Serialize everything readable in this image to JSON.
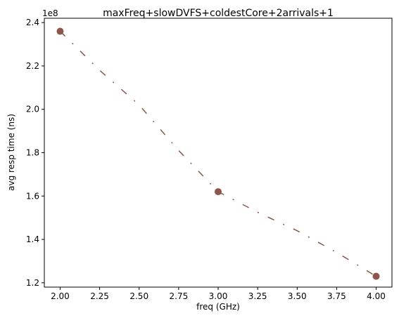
{
  "chart_data": {
    "type": "scatter",
    "title": "maxFreq+slowDVFS+coldestCore+2arrivals+1",
    "xlabel": "freq (GHz)",
    "ylabel": "avg resp time (ns)",
    "y_offset_label": "1e8",
    "xlim": [
      1.9,
      4.1
    ],
    "ylim": [
      1.18,
      2.42
    ],
    "x_ticks": [
      2.0,
      2.25,
      2.5,
      2.75,
      3.0,
      3.25,
      3.5,
      3.75,
      4.0
    ],
    "x_tick_labels": [
      "2.00",
      "2.25",
      "2.50",
      "2.75",
      "3.00",
      "3.25",
      "3.50",
      "3.75",
      "4.00"
    ],
    "y_ticks": [
      1.2,
      1.4,
      1.6,
      1.8,
      2.0,
      2.2,
      2.4
    ],
    "y_tick_labels": [
      "1.2",
      "1.4",
      "1.6",
      "1.8",
      "2.0",
      "2.2",
      "2.4"
    ],
    "grid": false,
    "series": [
      {
        "color": "#8c564b",
        "points": [
          {
            "x": 2.0,
            "y": 2.36
          },
          {
            "x": 3.0,
            "y": 1.62
          },
          {
            "x": 4.0,
            "y": 1.23
          }
        ],
        "fit_curve": {
          "style": "dashdot",
          "x": [
            2.0,
            2.25,
            2.5,
            2.75,
            3.0,
            3.25,
            3.5,
            3.75,
            4.0
          ],
          "y": [
            2.36,
            2.18,
            2.02,
            1.81,
            1.62,
            1.525,
            1.44,
            1.34,
            1.23
          ]
        }
      }
    ]
  }
}
